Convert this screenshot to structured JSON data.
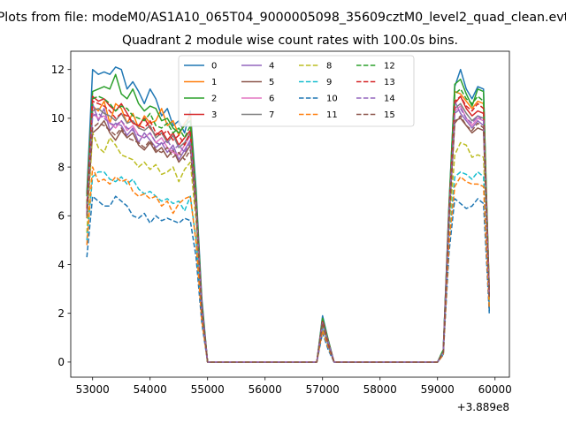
{
  "figure": {
    "suptitle": "Plots from file: modeM0/AS1A10_065T04_9000005098_35609cztM0_level2_quad_clean.evt"
  },
  "chart_data": {
    "type": "line",
    "title": "Quadrant 2 module wise count rates with 100.0s bins.",
    "xlabel": "",
    "ylabel": "",
    "x_offset_label": "+3.889e8",
    "xlim": [
      52620,
      60250
    ],
    "ylim": [
      -0.62,
      12.75
    ],
    "xticks": [
      53000,
      54000,
      55000,
      56000,
      57000,
      58000,
      59000,
      60000
    ],
    "xtick_labels": [
      "53000",
      "54000",
      "55000",
      "56000",
      "57000",
      "58000",
      "59000",
      "60000"
    ],
    "yticks": [
      0,
      2,
      4,
      6,
      8,
      10,
      12
    ],
    "ytick_labels": [
      "0",
      "2",
      "4",
      "6",
      "8",
      "10",
      "12"
    ],
    "grid": false,
    "legend_position": "top-center",
    "legend_columns": 4,
    "x": [
      52900,
      53000,
      53100,
      53200,
      53300,
      53400,
      53500,
      53600,
      53700,
      53800,
      53900,
      54000,
      54100,
      54200,
      54300,
      54400,
      54500,
      54600,
      54700,
      54800,
      54900,
      55000,
      55100,
      55200,
      55300,
      55400,
      55500,
      55600,
      55700,
      55800,
      55900,
      56000,
      56100,
      56200,
      56300,
      56400,
      56500,
      56600,
      56700,
      56800,
      56900,
      57000,
      57100,
      57200,
      57300,
      57400,
      57500,
      57600,
      57700,
      57800,
      57900,
      58000,
      58100,
      58200,
      58300,
      58400,
      58500,
      58600,
      58700,
      58800,
      58900,
      59000,
      59100,
      59200,
      59300,
      59400,
      59500,
      59600,
      59700,
      59800,
      59900
    ],
    "series": [
      {
        "name": "0",
        "color": "#1f77b4",
        "dash": "solid",
        "values": [
          6.9,
          12.0,
          11.8,
          11.9,
          11.8,
          12.1,
          12.0,
          11.2,
          11.5,
          11.1,
          10.6,
          11.2,
          10.8,
          10.1,
          10.4,
          9.7,
          9.9,
          9.4,
          10.3,
          7.1,
          2.6,
          0,
          0,
          0,
          0,
          0,
          0,
          0,
          0,
          0,
          0,
          0,
          0,
          0,
          0,
          0,
          0,
          0,
          0,
          0,
          0,
          1.9,
          0.9,
          0,
          0,
          0,
          0,
          0,
          0,
          0,
          0,
          0,
          0,
          0,
          0,
          0,
          0,
          0,
          0,
          0,
          0,
          0,
          0.5,
          6.5,
          11.3,
          12.0,
          11.2,
          10.8,
          11.3,
          11.2,
          2.1
        ]
      },
      {
        "name": "1",
        "color": "#ff7f0e",
        "dash": "solid",
        "values": [
          6.3,
          10.5,
          10.3,
          10.7,
          9.8,
          10.6,
          10.4,
          9.8,
          10.2,
          9.6,
          10.1,
          9.8,
          9.9,
          10.4,
          9.7,
          9.9,
          9.3,
          9.8,
          10.1,
          6.7,
          2.2,
          0,
          0,
          0,
          0,
          0,
          0,
          0,
          0,
          0,
          0,
          0,
          0,
          0,
          0,
          0,
          0,
          0,
          0,
          0,
          0,
          1.7,
          0.8,
          0,
          0,
          0,
          0,
          0,
          0,
          0,
          0,
          0,
          0,
          0,
          0,
          0,
          0,
          0,
          0,
          0,
          0,
          0,
          0.4,
          6.0,
          11.1,
          11.0,
          10.7,
          10.4,
          10.7,
          10.6,
          3.0
        ]
      },
      {
        "name": "2",
        "color": "#2ca02c",
        "dash": "solid",
        "values": [
          6.8,
          11.1,
          11.2,
          11.3,
          11.2,
          11.8,
          11.0,
          10.8,
          11.2,
          10.6,
          10.3,
          10.5,
          10.4,
          9.9,
          10.0,
          9.6,
          9.4,
          9.7,
          9.9,
          6.9,
          2.4,
          0,
          0,
          0,
          0,
          0,
          0,
          0,
          0,
          0,
          0,
          0,
          0,
          0,
          0,
          0,
          0,
          0,
          0,
          0,
          0,
          1.8,
          0.9,
          0,
          0,
          0,
          0,
          0,
          0,
          0,
          0,
          0,
          0,
          0,
          0,
          0,
          0,
          0,
          0,
          0,
          0,
          0,
          0.5,
          6.4,
          11.4,
          11.6,
          11.0,
          10.5,
          11.2,
          11.1,
          2.9
        ]
      },
      {
        "name": "3",
        "color": "#d62728",
        "dash": "solid",
        "values": [
          6.4,
          10.9,
          10.7,
          10.8,
          10.5,
          10.3,
          10.6,
          10.2,
          9.8,
          9.7,
          10.0,
          9.6,
          9.3,
          9.5,
          9.1,
          9.4,
          8.9,
          9.2,
          9.5,
          6.5,
          2.3,
          0,
          0,
          0,
          0,
          0,
          0,
          0,
          0,
          0,
          0,
          0,
          0,
          0,
          0,
          0,
          0,
          0,
          0,
          0,
          0,
          1.7,
          0.8,
          0,
          0,
          0,
          0,
          0,
          0,
          0,
          0,
          0,
          0,
          0,
          0,
          0,
          0,
          0,
          0,
          0,
          0,
          0,
          0.4,
          6.1,
          10.6,
          10.9,
          10.4,
          10.1,
          10.3,
          10.2,
          2.8
        ]
      },
      {
        "name": "4",
        "color": "#9467bd",
        "dash": "solid",
        "values": [
          6.0,
          10.6,
          9.9,
          10.4,
          9.5,
          9.8,
          9.7,
          9.3,
          9.6,
          9.0,
          9.4,
          9.1,
          8.8,
          9.0,
          8.6,
          8.9,
          8.3,
          8.7,
          9.1,
          6.3,
          2.2,
          0,
          0,
          0,
          0,
          0,
          0,
          0,
          0,
          0,
          0,
          0,
          0,
          0,
          0,
          0,
          0,
          0,
          0,
          0,
          0,
          1.6,
          0.8,
          0,
          0,
          0,
          0,
          0,
          0,
          0,
          0,
          0,
          0,
          0,
          0,
          0,
          0,
          0,
          0,
          0,
          0,
          0,
          0.4,
          5.9,
          10.7,
          10.2,
          9.9,
          9.6,
          9.9,
          9.7,
          2.7
        ]
      },
      {
        "name": "5",
        "color": "#8c564b",
        "dash": "solid",
        "values": [
          5.9,
          9.4,
          9.6,
          9.9,
          9.4,
          9.1,
          9.5,
          9.2,
          9.4,
          8.9,
          8.7,
          9.0,
          8.6,
          8.8,
          8.4,
          8.7,
          8.2,
          8.5,
          8.9,
          6.2,
          2.1,
          0,
          0,
          0,
          0,
          0,
          0,
          0,
          0,
          0,
          0,
          0,
          0,
          0,
          0,
          0,
          0,
          0,
          0,
          0,
          0,
          1.6,
          0.7,
          0,
          0,
          0,
          0,
          0,
          0,
          0,
          0,
          0,
          0,
          0,
          0,
          0,
          0,
          0,
          0,
          0,
          0,
          0,
          0.4,
          5.8,
          9.9,
          10.0,
          9.7,
          9.4,
          9.6,
          9.5,
          2.6
        ]
      },
      {
        "name": "6",
        "color": "#e377c2",
        "dash": "solid",
        "values": [
          6.2,
          10.2,
          10.0,
          10.1,
          9.8,
          9.6,
          9.9,
          9.5,
          9.7,
          9.3,
          9.2,
          9.4,
          9.0,
          9.2,
          8.8,
          8.6,
          8.5,
          8.9,
          9.3,
          6.4,
          2.2,
          0,
          0,
          0,
          0,
          0,
          0,
          0,
          0,
          0,
          0,
          0,
          0,
          0,
          0,
          0,
          0,
          0,
          0,
          0,
          0,
          1.7,
          0.8,
          0,
          0,
          0,
          0,
          0,
          0,
          0,
          0,
          0,
          0,
          0,
          0,
          0,
          0,
          0,
          0,
          0,
          0,
          0,
          0.4,
          6.0,
          10.3,
          10.5,
          10.0,
          9.7,
          10.0,
          9.9,
          2.8
        ]
      },
      {
        "name": "7",
        "color": "#7f7f7f",
        "dash": "solid",
        "values": [
          6.3,
          10.3,
          10.4,
          10.2,
          10.1,
          9.9,
          10.2,
          9.8,
          9.9,
          9.6,
          9.5,
          9.7,
          9.2,
          9.4,
          9.0,
          9.3,
          8.8,
          9.0,
          9.4,
          6.5,
          2.3,
          0,
          0,
          0,
          0,
          0,
          0,
          0,
          0,
          0,
          0,
          0,
          0,
          0,
          0,
          0,
          0,
          0,
          0,
          0,
          0,
          1.7,
          0.8,
          0,
          0,
          0,
          0,
          0,
          0,
          0,
          0,
          0,
          0,
          0,
          0,
          0,
          0,
          0,
          0,
          0,
          0,
          0,
          0.4,
          6.1,
          10.4,
          10.6,
          10.2,
          9.9,
          10.1,
          10.0,
          2.8
        ]
      },
      {
        "name": "8",
        "color": "#bcbd22",
        "dash": "dashed",
        "values": [
          5.3,
          9.4,
          8.8,
          8.6,
          9.2,
          8.9,
          8.5,
          8.4,
          8.3,
          8.0,
          8.2,
          7.9,
          8.1,
          7.7,
          7.8,
          8.0,
          7.4,
          7.9,
          8.2,
          5.8,
          2.0,
          0,
          0,
          0,
          0,
          0,
          0,
          0,
          0,
          0,
          0,
          0,
          0,
          0,
          0,
          0,
          0,
          0,
          0,
          0,
          0,
          1.5,
          0.7,
          0,
          0,
          0,
          0,
          0,
          0,
          0,
          0,
          0,
          0,
          0,
          0,
          0,
          0,
          0,
          0,
          0,
          0,
          0,
          0.3,
          5.5,
          8.5,
          9.0,
          8.9,
          8.4,
          8.5,
          8.4,
          2.5
        ]
      },
      {
        "name": "9",
        "color": "#17becf",
        "dash": "dashed",
        "values": [
          5.0,
          7.6,
          7.8,
          7.8,
          7.5,
          7.4,
          7.6,
          7.3,
          7.5,
          7.1,
          6.9,
          7.0,
          6.8,
          6.6,
          6.7,
          6.5,
          6.6,
          6.2,
          6.8,
          5.0,
          1.8,
          0,
          0,
          0,
          0,
          0,
          0,
          0,
          0,
          0,
          0,
          0,
          0,
          0,
          0,
          0,
          0,
          0,
          0,
          0,
          0,
          1.4,
          0.6,
          0,
          0,
          0,
          0,
          0,
          0,
          0,
          0,
          0,
          0,
          0,
          0,
          0,
          0,
          0,
          0,
          0,
          0,
          0,
          0.3,
          5.0,
          7.6,
          7.8,
          7.7,
          7.5,
          7.8,
          7.6,
          2.3
        ]
      },
      {
        "name": "10",
        "color": "#1f77b4",
        "dash": "dashed",
        "values": [
          4.3,
          6.8,
          6.6,
          6.4,
          6.4,
          6.8,
          6.6,
          6.4,
          6.0,
          5.9,
          6.1,
          5.7,
          6.0,
          5.8,
          5.9,
          5.8,
          5.7,
          5.9,
          5.8,
          4.3,
          1.6,
          0,
          0,
          0,
          0,
          0,
          0,
          0,
          0,
          0,
          0,
          0,
          0,
          0,
          0,
          0,
          0,
          0,
          0,
          0,
          0,
          1.2,
          0.5,
          0,
          0,
          0,
          0,
          0,
          0,
          0,
          0,
          0,
          0,
          0,
          0,
          0,
          0,
          0,
          0,
          0,
          0,
          0,
          0.3,
          4.5,
          6.7,
          6.5,
          6.3,
          6.4,
          6.7,
          6.5,
          2.0
        ]
      },
      {
        "name": "11",
        "color": "#ff7f0e",
        "dash": "dashed",
        "values": [
          4.8,
          8.0,
          7.4,
          7.5,
          7.3,
          7.6,
          7.4,
          7.5,
          7.0,
          6.8,
          6.9,
          6.7,
          6.8,
          6.4,
          6.6,
          6.1,
          6.5,
          6.7,
          6.8,
          4.9,
          1.7,
          0,
          0,
          0,
          0,
          0,
          0,
          0,
          0,
          0,
          0,
          0,
          0,
          0,
          0,
          0,
          0,
          0,
          0,
          0,
          0,
          1.3,
          0.6,
          0,
          0,
          0,
          0,
          0,
          0,
          0,
          0,
          0,
          0,
          0,
          0,
          0,
          0,
          0,
          0,
          0,
          0,
          0,
          0.3,
          4.9,
          7.2,
          7.6,
          7.4,
          7.3,
          7.3,
          7.2,
          2.2
        ]
      },
      {
        "name": "12",
        "color": "#2ca02c",
        "dash": "dashed",
        "values": [
          6.5,
          10.8,
          10.9,
          10.8,
          10.6,
          10.3,
          10.5,
          10.4,
          10.1,
          10.0,
          9.9,
          10.2,
          9.7,
          9.6,
          9.8,
          9.4,
          9.6,
          9.2,
          9.7,
          6.8,
          2.4,
          0,
          0,
          0,
          0,
          0,
          0,
          0,
          0,
          0,
          0,
          0,
          0,
          0,
          0,
          0,
          0,
          0,
          0,
          0,
          0,
          1.8,
          0.8,
          0,
          0,
          0,
          0,
          0,
          0,
          0,
          0,
          0,
          0,
          0,
          0,
          0,
          0,
          0,
          0,
          0,
          0,
          0,
          0.5,
          6.3,
          11.0,
          11.2,
          10.8,
          10.6,
          10.9,
          10.7,
          2.9
        ]
      },
      {
        "name": "13",
        "color": "#d62728",
        "dash": "dashed",
        "values": [
          6.3,
          10.7,
          10.6,
          10.5,
          10.3,
          10.0,
          10.2,
          10.1,
          9.8,
          9.7,
          9.6,
          9.9,
          9.4,
          9.3,
          9.5,
          9.1,
          9.3,
          8.9,
          9.4,
          6.6,
          2.3,
          0,
          0,
          0,
          0,
          0,
          0,
          0,
          0,
          0,
          0,
          0,
          0,
          0,
          0,
          0,
          0,
          0,
          0,
          0,
          0,
          1.7,
          0.8,
          0,
          0,
          0,
          0,
          0,
          0,
          0,
          0,
          0,
          0,
          0,
          0,
          0,
          0,
          0,
          0,
          0,
          0,
          0,
          0.4,
          6.2,
          10.7,
          10.9,
          10.5,
          10.3,
          10.6,
          10.4,
          2.8
        ]
      },
      {
        "name": "14",
        "color": "#9467bd",
        "dash": "dashed",
        "values": [
          6.1,
          10.1,
          10.2,
          10.0,
          9.8,
          9.7,
          9.9,
          9.6,
          9.5,
          9.3,
          9.2,
          9.4,
          9.0,
          8.9,
          9.1,
          8.7,
          8.9,
          8.6,
          9.0,
          6.4,
          2.2,
          0,
          0,
          0,
          0,
          0,
          0,
          0,
          0,
          0,
          0,
          0,
          0,
          0,
          0,
          0,
          0,
          0,
          0,
          0,
          0,
          1.6,
          0.8,
          0,
          0,
          0,
          0,
          0,
          0,
          0,
          0,
          0,
          0,
          0,
          0,
          0,
          0,
          0,
          0,
          0,
          0,
          0,
          0.4,
          6.0,
          10.2,
          10.4,
          10.0,
          9.8,
          10.1,
          9.9,
          2.7
        ]
      },
      {
        "name": "15",
        "color": "#8c564b",
        "dash": "dashed",
        "values": [
          6.0,
          9.6,
          9.8,
          9.7,
          9.5,
          9.3,
          9.6,
          9.2,
          9.1,
          9.0,
          8.8,
          9.1,
          8.7,
          8.6,
          8.8,
          8.4,
          8.6,
          8.3,
          8.7,
          6.2,
          2.1,
          0,
          0,
          0,
          0,
          0,
          0,
          0,
          0,
          0,
          0,
          0,
          0,
          0,
          0,
          0,
          0,
          0,
          0,
          0,
          0,
          1.6,
          0.7,
          0,
          0,
          0,
          0,
          0,
          0,
          0,
          0,
          0,
          0,
          0,
          0,
          0,
          0,
          0,
          0,
          0,
          0,
          0,
          0.4,
          5.8,
          9.8,
          10.1,
          9.7,
          9.5,
          9.8,
          9.6,
          2.6
        ]
      }
    ]
  }
}
